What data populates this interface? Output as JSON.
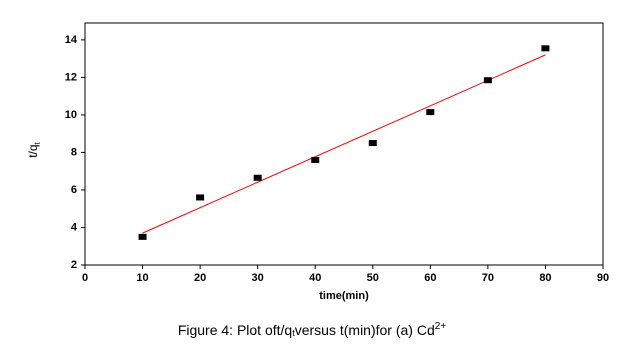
{
  "chart_data": {
    "type": "scatter",
    "x_label": "time(min)",
    "y_label": {
      "text": "t/q",
      "subscript": "t"
    },
    "caption": {
      "before": "Figure 4: Plot oft/q",
      "subscript": "t",
      "middle": "versus t(min)for (a) Cd",
      "superscript": "2+"
    },
    "x": [
      10,
      20,
      30,
      40,
      50,
      60,
      70,
      80
    ],
    "values": [
      3.5,
      5.6,
      6.65,
      7.6,
      8.5,
      10.15,
      11.85,
      13.55
    ],
    "color": "#000000",
    "fit_line": {
      "x": [
        10,
        80
      ],
      "y": [
        3.7,
        13.2
      ],
      "color": "#ff0000"
    },
    "xlim": [
      0,
      90
    ],
    "xticks": [
      0,
      10,
      20,
      30,
      40,
      50,
      60,
      70,
      80,
      90
    ],
    "ylim": [
      2,
      14.9
    ],
    "yticks": [
      2,
      4,
      6,
      8,
      10,
      12,
      14
    ]
  }
}
